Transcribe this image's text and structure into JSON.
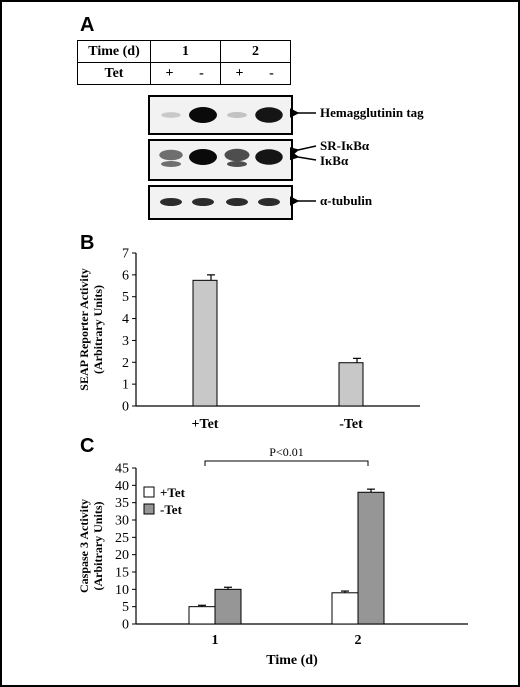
{
  "panelA": {
    "letter": "A",
    "time_header": "Time (d)",
    "tet_header": "Tet",
    "times": [
      "1",
      "2"
    ],
    "tet_values": [
      "+",
      "-",
      "+",
      "-"
    ],
    "blots": [
      {
        "label": "Hemagglutinin tag",
        "intensities": [
          0.15,
          1.0,
          0.18,
          0.95
        ]
      },
      {
        "label_top": "SR-IκBα",
        "label_bottom": "IκBα",
        "intensities_top": [
          0.55,
          1.0,
          0.7,
          0.95
        ],
        "intensities_bottom": [
          0.55,
          0.0,
          0.7,
          0.0
        ]
      },
      {
        "label": "α-tubulin",
        "intensities": [
          0.85,
          0.85,
          0.85,
          0.85
        ]
      }
    ]
  },
  "chart_data": [
    {
      "type": "bar",
      "panel": "B",
      "categories": [
        "+Tet",
        "-Tet"
      ],
      "values": [
        5.75,
        1.98
      ],
      "errors": [
        0.25,
        0.2
      ],
      "ylabel": "SEAP Reporter Activity (Arbitrary Units)",
      "ylabel_lines": [
        "SEAP Reporter Activity",
        "(Arbitrary Units)"
      ],
      "ylim": [
        0,
        7
      ],
      "yticks": [
        "0",
        "1",
        "2",
        "3",
        "4",
        "5",
        "6",
        "7"
      ],
      "bar_color": "#c8c8c8"
    },
    {
      "type": "bar",
      "panel": "C",
      "categories": [
        "1",
        "2"
      ],
      "series": [
        {
          "name": "+Tet",
          "values": [
            5.0,
            9.0
          ],
          "errors": [
            0.4,
            0.5
          ],
          "color": "#ffffff"
        },
        {
          "name": "-Tet",
          "values": [
            10.0,
            38.0
          ],
          "errors": [
            0.6,
            0.9
          ],
          "color": "#969696"
        }
      ],
      "xlabel": "Time (d)",
      "ylabel": "Caspase 3 Activity (Arbitrary Units)",
      "ylabel_lines": [
        "Caspase 3 Activity",
        "(Arbitrary Units)"
      ],
      "ylim": [
        0,
        45
      ],
      "yticks": [
        "0",
        "5",
        "10",
        "15",
        "20",
        "25",
        "30",
        "35",
        "40",
        "45"
      ],
      "annotation": "P<0.01",
      "legend": "top-left"
    }
  ]
}
